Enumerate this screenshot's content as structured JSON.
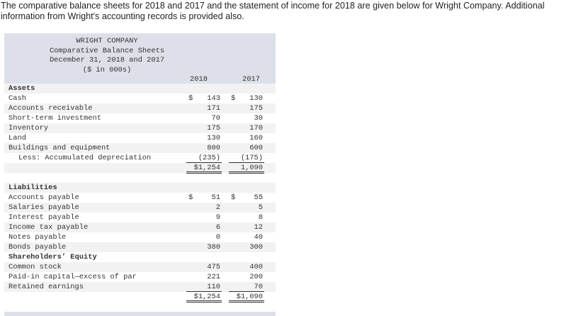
{
  "intro": "The comparative balance sheets for 2018 and 2017 and the statement of income for 2018 are given below for Wright Company. Additional information from Wright's accounting records is provided also.",
  "header": {
    "company": "WRIGHT COMPANY",
    "title": "Comparative Balance Sheets",
    "date": "December 31, 2018 and 2017",
    "units": "($ in 000s)",
    "year1": "2018",
    "year2": "2017"
  },
  "rows": [
    {
      "label": "Assets",
      "bold": true
    },
    {
      "label": "Cash",
      "v1": "143",
      "v2": "130",
      "d1": "$",
      "d2": "$"
    },
    {
      "label": "Accounts receivable",
      "v1": "171",
      "v2": "175"
    },
    {
      "label": "Short-term investment",
      "v1": "70",
      "v2": "30"
    },
    {
      "label": "Inventory",
      "v1": "175",
      "v2": "170"
    },
    {
      "label": "Land",
      "v1": "130",
      "v2": "160"
    },
    {
      "label": "Buildings and equipment",
      "v1": "800",
      "v2": "600"
    },
    {
      "label": "Less: Accumulated depreciation",
      "v1": "(235)",
      "v2": "(175)",
      "indent": true,
      "line": "ul"
    },
    {
      "label": "",
      "v1": "$1,254",
      "v2": "1,090",
      "line": "dl"
    },
    {
      "label": "",
      "gap": true
    },
    {
      "label": "Liabilities",
      "bold": true
    },
    {
      "label": "Accounts payable",
      "v1": "51",
      "v2": "55",
      "d1": "$",
      "d2": "$"
    },
    {
      "label": "Salaries payable",
      "v1": "2",
      "v2": "5"
    },
    {
      "label": "Interest payable",
      "v1": "9",
      "v2": "8"
    },
    {
      "label": "Income tax payable",
      "v1": "6",
      "v2": "12"
    },
    {
      "label": "Notes payable",
      "v1": "0",
      "v2": "40"
    },
    {
      "label": "Bonds payable",
      "v1": "380",
      "v2": "300"
    },
    {
      "label": "Shareholders’ Equity",
      "bold": true
    },
    {
      "label": "Common stock",
      "v1": "475",
      "v2": "400"
    },
    {
      "label": "Paid-in capital—excess of par",
      "v1": "221",
      "v2": "200"
    },
    {
      "label": "Retained earnings",
      "v1": "110",
      "v2": "70",
      "line": "ul"
    },
    {
      "label": "",
      "v1": "$1,254",
      "v2": "$1,090",
      "line": "dl"
    }
  ]
}
